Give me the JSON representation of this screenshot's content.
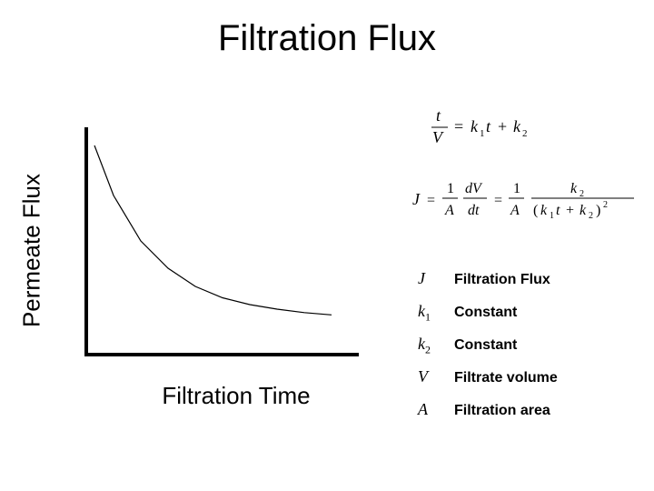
{
  "slide": {
    "title": "Filtration Flux",
    "title_fontsize": 40,
    "background_color": "#ffffff"
  },
  "chart": {
    "type": "line",
    "y_label": "Permeate Flux",
    "x_label": "Filtration Time",
    "label_fontsize": 26,
    "xlim": [
      0,
      10
    ],
    "ylim": [
      0,
      1
    ],
    "axis_color": "#000000",
    "axis_width": 4,
    "curve_color": "#000000",
    "curve_width": 1.2,
    "curve_points": [
      [
        0.3,
        0.92
      ],
      [
        1.0,
        0.7
      ],
      [
        2.0,
        0.5
      ],
      [
        3.0,
        0.38
      ],
      [
        4.0,
        0.3
      ],
      [
        5.0,
        0.25
      ],
      [
        6.0,
        0.22
      ],
      [
        7.0,
        0.2
      ],
      [
        8.0,
        0.185
      ],
      [
        9.0,
        0.175
      ]
    ]
  },
  "equations": {
    "eq1": "t / V = k1 t + k2",
    "eq2": "J = (1/A)(dV/dt) = (1/A) · k2 / (k1 t + k2)^2"
  },
  "legend": {
    "items": [
      {
        "symbol": "J",
        "sub": "",
        "text": "Filtration Flux"
      },
      {
        "symbol": "k",
        "sub": "1",
        "text": "Constant"
      },
      {
        "symbol": "k",
        "sub": "2",
        "text": "Constant"
      },
      {
        "symbol": "V",
        "sub": "",
        "text": "Filtrate volume"
      },
      {
        "symbol": "A",
        "sub": "",
        "text": "Filtration area"
      }
    ],
    "text_fontsize": 16,
    "symbol_fontsize": 18,
    "text_color": "#000000"
  }
}
